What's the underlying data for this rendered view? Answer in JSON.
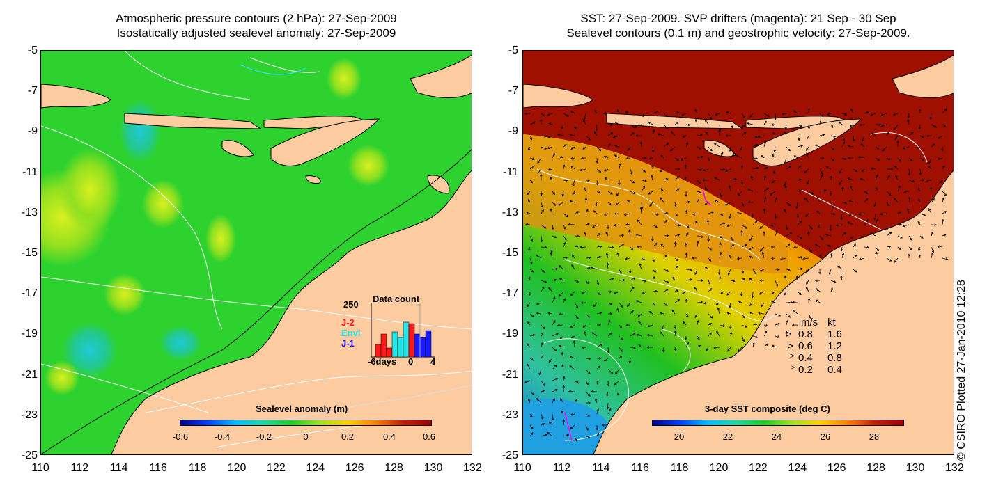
{
  "left_panel": {
    "title_line1": "Atmospheric pressure contours (2 hPa): 27-Sep-2009",
    "title_line2": "Isostatically adjusted sealevel anomaly: 27-Sep-2009",
    "colorbar": {
      "title": "Sealevel anomaly (m)",
      "ticks": [
        "-0.6",
        "-0.4",
        "-0.2",
        "0",
        "0.2",
        "0.4",
        "0.6"
      ]
    },
    "inset": {
      "title": "Data count",
      "ymax_label": "250",
      "series": [
        {
          "name": "J-2",
          "color": "#ff1a1a"
        },
        {
          "name": "Envi",
          "color": "#1ee6e6"
        },
        {
          "name": "J-1",
          "color": "#1a1aff"
        }
      ],
      "x_ticks": [
        "-6days",
        "0",
        "4"
      ]
    }
  },
  "right_panel": {
    "title_line1": "SST: 27-Sep-2009. SVP drifters (magenta): 21 Sep - 30 Sep",
    "title_line2": "Sealevel contours (0.1 m) and geostrophic velocity: 27-Sep-2009.",
    "colorbar": {
      "title": "3-day SST composite (deg C)",
      "ticks": [
        "20",
        "22",
        "24",
        "26",
        "28"
      ]
    },
    "velocity_legend": {
      "header_ms": "m/s",
      "header_kt": "kt",
      "rows": [
        {
          "ms": "0.8",
          "kt": "1.6"
        },
        {
          "ms": "0.6",
          "kt": "1.2"
        },
        {
          "ms": "0.4",
          "kt": "0.8"
        },
        {
          "ms": "0.2",
          "kt": "0.4"
        }
      ]
    }
  },
  "axes": {
    "y_ticks": [
      "-5",
      "-7",
      "-9",
      "-11",
      "-13",
      "-15",
      "-17",
      "-19",
      "-21",
      "-23",
      "-25"
    ],
    "x_ticks": [
      "110",
      "112",
      "114",
      "116",
      "118",
      "120",
      "122",
      "124",
      "126",
      "128",
      "130",
      "132"
    ]
  },
  "credit": "© CSIRO Plotted 27-Jan-2010 12:28",
  "colors": {
    "land": "#fccba0",
    "sealevel_base": "#2ed22e",
    "sst_warm": "#a01000"
  }
}
